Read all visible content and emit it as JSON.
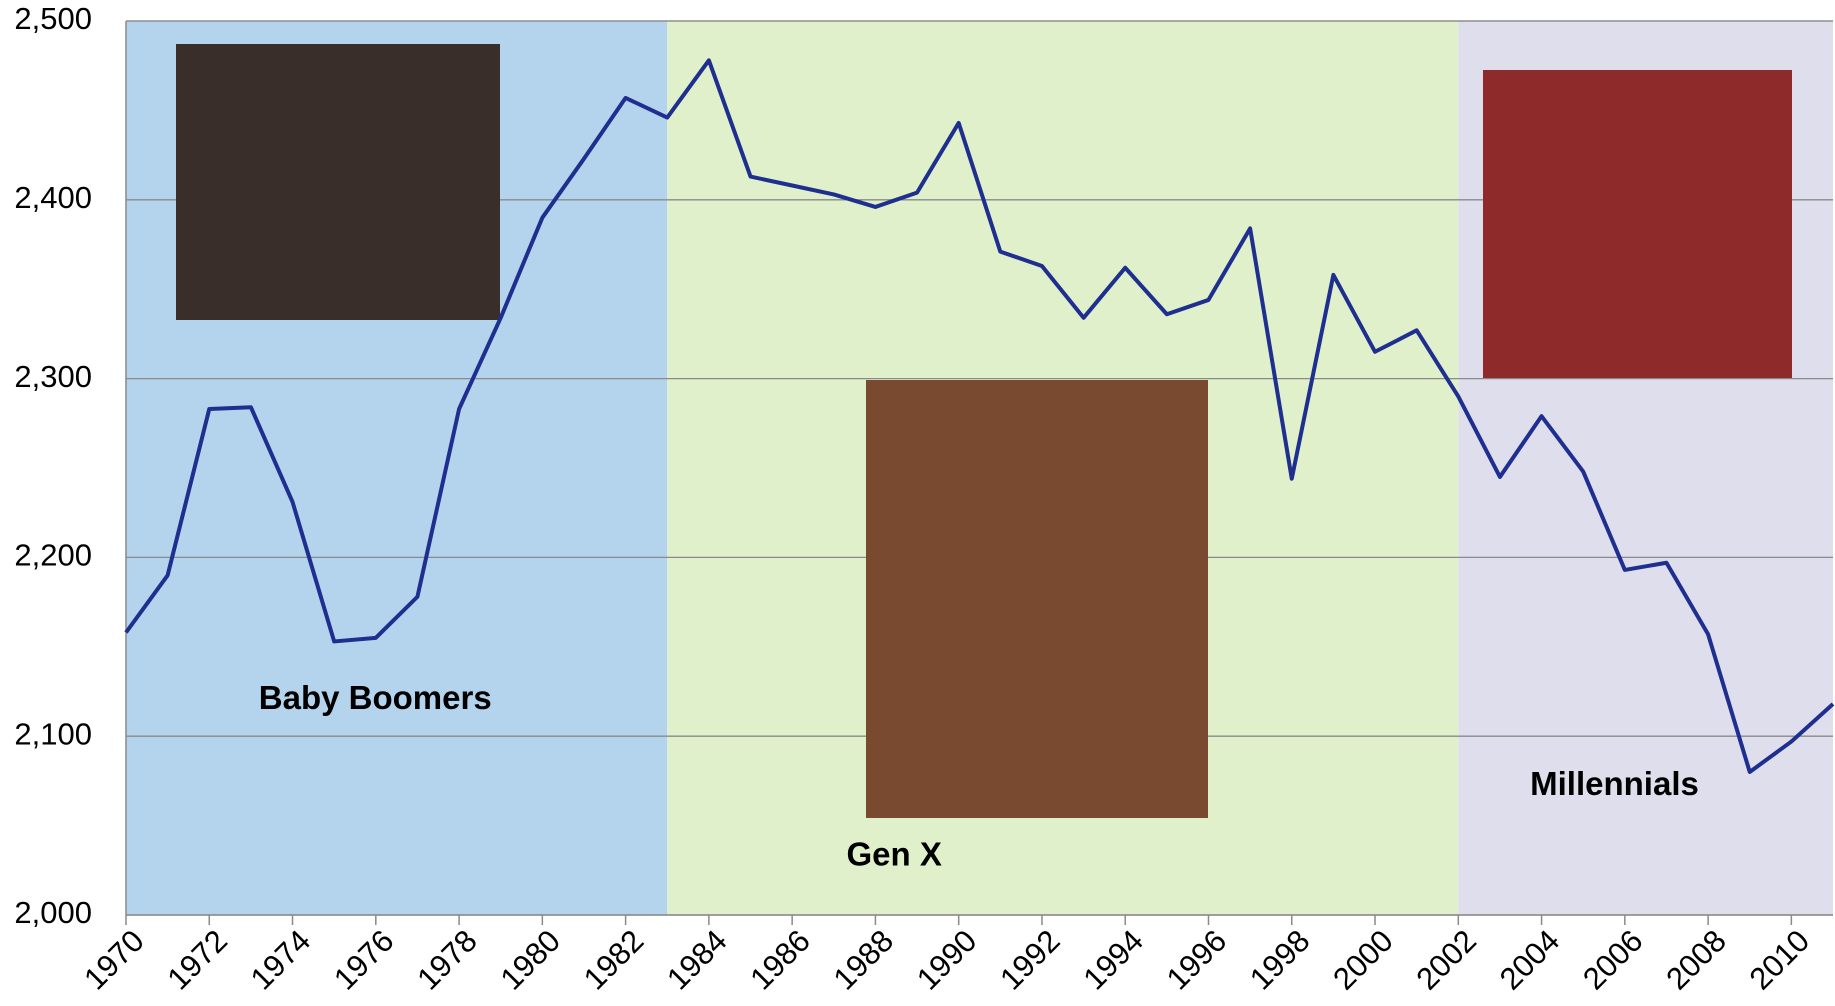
{
  "chart_data": {
    "type": "line",
    "x": [
      1970,
      1971,
      1972,
      1973,
      1974,
      1975,
      1976,
      1977,
      1978,
      1979,
      1980,
      1981,
      1982,
      1983,
      1984,
      1985,
      1986,
      1987,
      1988,
      1989,
      1990,
      1991,
      1992,
      1993,
      1994,
      1995,
      1996,
      1997,
      1998,
      1999,
      2000,
      2001,
      2002,
      2003,
      2004,
      2005,
      2006,
      2007,
      2008,
      2009,
      2010,
      2011
    ],
    "series": [
      {
        "color": "#1f2f8f",
        "values": [
          2158,
          2190,
          2283,
          2284,
          2231,
          2153,
          2155,
          2178,
          2283,
          2334,
          2390,
          2423,
          2457,
          2446,
          2478,
          2413,
          2408,
          2403,
          2396,
          2404,
          2443,
          2371,
          2363,
          2334,
          2362,
          2336,
          2344,
          2384,
          2244,
          2358,
          2315,
          2327,
          2290,
          2245,
          2279,
          2248,
          2193,
          2197,
          2157,
          2080,
          2097,
          2118
        ]
      }
    ],
    "xlim": [
      1970,
      2011
    ],
    "xticks": [
      1970,
      1972,
      1974,
      1976,
      1978,
      1980,
      1982,
      1984,
      1986,
      1988,
      1990,
      1992,
      1994,
      1996,
      1998,
      2000,
      2002,
      2004,
      2006,
      2008,
      2010
    ],
    "ylim": [
      2000,
      2500
    ],
    "yticks": [
      {
        "value": 2000,
        "label": "2,000"
      },
      {
        "value": 2100,
        "label": "2,100"
      },
      {
        "value": 2200,
        "label": "2,200"
      },
      {
        "value": 2300,
        "label": "2,300"
      },
      {
        "value": 2400,
        "label": "2,400"
      },
      {
        "value": 2500,
        "label": "2,500"
      }
    ],
    "grid": true,
    "regions": [
      {
        "label": "Baby Boomers",
        "start": 1970,
        "end": 1983,
        "color": "#b4d3ec"
      },
      {
        "label": "Gen X",
        "start": 1983,
        "end": 2002,
        "color": "#dff0cb"
      },
      {
        "label": "Millennials",
        "start": 2002,
        "end": 2011,
        "color": "#dedeed"
      }
    ]
  }
}
